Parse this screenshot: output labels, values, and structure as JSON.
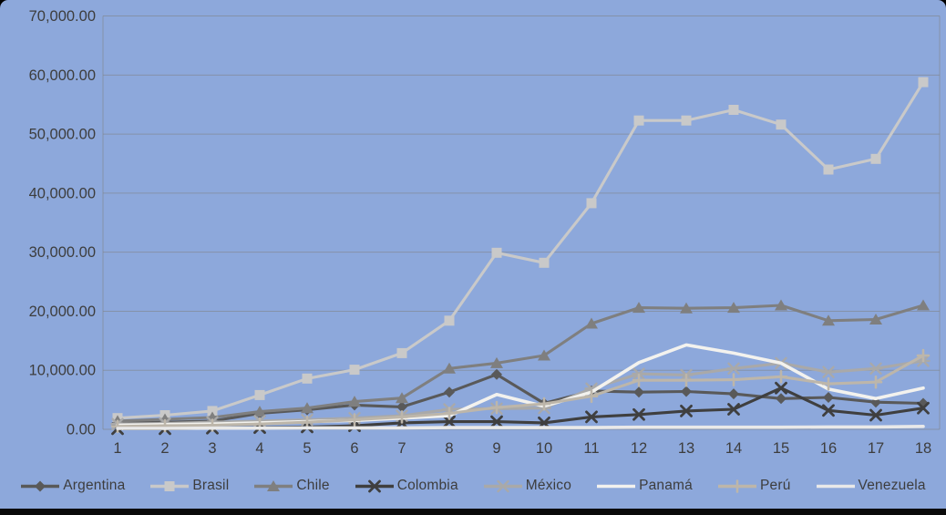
{
  "chart_data": {
    "type": "line",
    "title": "",
    "xlabel": "",
    "ylabel": "",
    "grid": true,
    "legend_position": "bottom",
    "background_color": "#8DA8DB",
    "gridline_color": "#7f7f7f",
    "text_color": "#3d3d3d",
    "x_labels": [
      "1",
      "2",
      "3",
      "4",
      "5",
      "6",
      "7",
      "8",
      "9",
      "10",
      "11",
      "12",
      "13",
      "14",
      "15",
      "16",
      "17",
      "18"
    ],
    "y_axis": {
      "min": 0,
      "max": 70000,
      "step": 10000,
      "tick_labels": [
        "0.00",
        "10,000.00",
        "20,000.00",
        "30,000.00",
        "40,000.00",
        "50,000.00",
        "60,000.00",
        "70,000.00"
      ]
    },
    "series": [
      {
        "name": "Argentina",
        "color": "#595959",
        "marker": "diamond",
        "values": [
          1100,
          1200,
          1400,
          2700,
          3300,
          4100,
          3800,
          6300,
          9300,
          4400,
          6500,
          6300,
          6400,
          6000,
          5200,
          5400,
          4600,
          4400
        ]
      },
      {
        "name": "Brasil",
        "color": "#C9C9C9",
        "marker": "square",
        "values": [
          1900,
          2400,
          3100,
          5800,
          8600,
          10100,
          12900,
          18400,
          29900,
          28200,
          38300,
          52300,
          52300,
          54100,
          51600,
          44000,
          45800,
          58800
        ]
      },
      {
        "name": "Chile",
        "color": "#7F7F7F",
        "marker": "triangle",
        "values": [
          1400,
          1700,
          2000,
          3000,
          3600,
          4700,
          5300,
          10300,
          11200,
          12500,
          17900,
          20600,
          20500,
          20600,
          21000,
          18400,
          18600,
          21000
        ]
      },
      {
        "name": "Colombia",
        "color": "#3F3F3F",
        "marker": "x",
        "values": [
          100,
          100,
          200,
          300,
          400,
          600,
          1100,
          1300,
          1300,
          1100,
          2100,
          2500,
          3100,
          3400,
          7000,
          3200,
          2400,
          3600
        ]
      },
      {
        "name": "México",
        "color": "#A9A9A9",
        "marker": "star",
        "values": [
          900,
          1000,
          1200,
          1400,
          1600,
          1900,
          2300,
          3400,
          3500,
          3600,
          6900,
          9400,
          9200,
          10300,
          11200,
          9700,
          10300,
          11600
        ]
      },
      {
        "name": "Panamá",
        "color": "#F3F2EE",
        "marker": "none",
        "values": [
          700,
          800,
          900,
          1100,
          1300,
          1500,
          1900,
          2300,
          5900,
          3900,
          6300,
          11300,
          14300,
          12900,
          11200,
          6800,
          5200,
          7000
        ]
      },
      {
        "name": "Perú",
        "color": "#BDB6AA",
        "marker": "plus",
        "values": [
          500,
          600,
          700,
          900,
          1200,
          1600,
          2100,
          2700,
          3700,
          4300,
          5600,
          8300,
          8300,
          8400,
          8900,
          7700,
          8000,
          12500
        ]
      },
      {
        "name": "Venezuela",
        "color": "#E9E9E9",
        "marker": "none",
        "values": [
          150,
          150,
          200,
          200,
          250,
          250,
          250,
          300,
          300,
          300,
          300,
          350,
          350,
          350,
          350,
          400,
          400,
          500
        ]
      }
    ]
  }
}
